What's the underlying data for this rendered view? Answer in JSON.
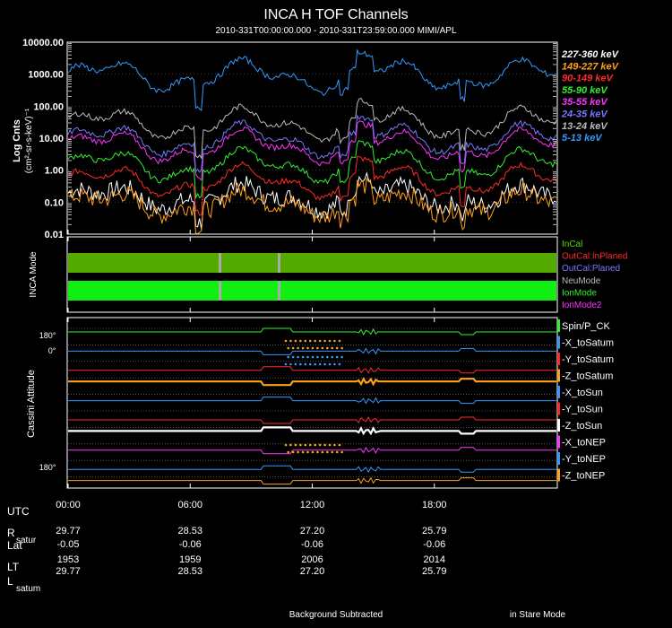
{
  "chart_data": {
    "type": "line",
    "title": "INCA H TOF Channels",
    "subtitle": "2010-331T00:00:00.000 - 2010-331T23:59:00.000 MIMI/APL",
    "panels": [
      {
        "name": "tof-channels",
        "ylabel": "Log Cnts",
        "ylabel_units": "(cm²-sr-s-keV)⁻¹",
        "yscale": "log",
        "ylim": [
          0.01,
          10000
        ],
        "yticks": [
          "10000.00",
          "1000.00",
          "100.00",
          "10.00",
          "1.00",
          "0.10",
          "0.01"
        ],
        "series": [
          {
            "name": "227-360 keV",
            "color": "#ffffff",
            "level": -0.85
          },
          {
            "name": "149-227 keV",
            "color": "#ff9f1a",
            "level": -1.05
          },
          {
            "name": "90-149 keV",
            "color": "#ff2a2a",
            "level": -0.35
          },
          {
            "name": "55-90 keV",
            "color": "#33ee33",
            "level": 0.15
          },
          {
            "name": "35-55 keV",
            "color": "#ff33ff",
            "level": 0.75
          },
          {
            "name": "24-35 keV",
            "color": "#7777ff",
            "level": 0.95
          },
          {
            "name": "13-24 keV",
            "color": "#bbbbbb",
            "level": 1.45
          },
          {
            "name": "5-13 keV",
            "color": "#3399ff",
            "level": 2.95
          }
        ]
      },
      {
        "name": "inca-mode",
        "ylabel": "INCA Mode",
        "legend": [
          {
            "name": "InCal",
            "color": "#55dd00"
          },
          {
            "name": "OutCal:InPlaned",
            "color": "#ff2a2a"
          },
          {
            "name": "OutCal:Planed",
            "color": "#7777ff"
          },
          {
            "name": "NeuMode",
            "color": "#bbbbbb"
          },
          {
            "name": "IonMode",
            "color": "#33ee33"
          },
          {
            "name": "IonMode2",
            "color": "#ff33ff"
          }
        ]
      },
      {
        "name": "cassini-attitude",
        "ylabel": "Cassini Attitude",
        "yticks_top": [
          "180°",
          "0°"
        ],
        "yticks_bottom": [
          "180°"
        ],
        "series": [
          {
            "name": "Spin/P_CK",
            "color": "#33ee33"
          },
          {
            "name": "-X_toSatum",
            "color": "#3399ff"
          },
          {
            "name": "-Y_toSatum",
            "color": "#ff2a2a"
          },
          {
            "name": "-Z_toSatum",
            "color": "#ff9f1a"
          },
          {
            "name": "-X_toSun",
            "color": "#3399ff"
          },
          {
            "name": "-Y_toSun",
            "color": "#ff2a2a"
          },
          {
            "name": "-Z_toSun",
            "color": "#ffffff"
          },
          {
            "name": "-X_toNEP",
            "color": "#ff33ff"
          },
          {
            "name": "-Y_toNEP",
            "color": "#3399ff"
          },
          {
            "name": "-Z_toNEP",
            "color": "#ff9f1a"
          }
        ]
      }
    ],
    "xlim_hours": [
      0,
      24
    ],
    "xticks": [
      "00:00",
      "06:00",
      "12:00",
      "18:00"
    ],
    "xtick_hours": [
      0,
      6,
      12,
      18
    ],
    "table": {
      "rows": [
        {
          "label": "UTC",
          "sub": "",
          "values": []
        },
        {
          "label": "R",
          "sub": "satur",
          "values": [
            "29.77",
            "28.53",
            "27.20",
            "25.79"
          ]
        },
        {
          "label": "Lat",
          "sub": "",
          "values": [
            "-0.05",
            "-0.06",
            "-0.06",
            "-0.06"
          ]
        },
        {
          "label": "LT",
          "sub": "",
          "values": [
            "1953",
            "1959",
            "2006",
            "2014"
          ]
        },
        {
          "label": "L",
          "sub": "satum",
          "values": [
            "29.77",
            "28.53",
            "27.20",
            "25.79"
          ]
        }
      ]
    },
    "footer_left": "Background Subtracted",
    "footer_right": "in Stare Mode"
  }
}
